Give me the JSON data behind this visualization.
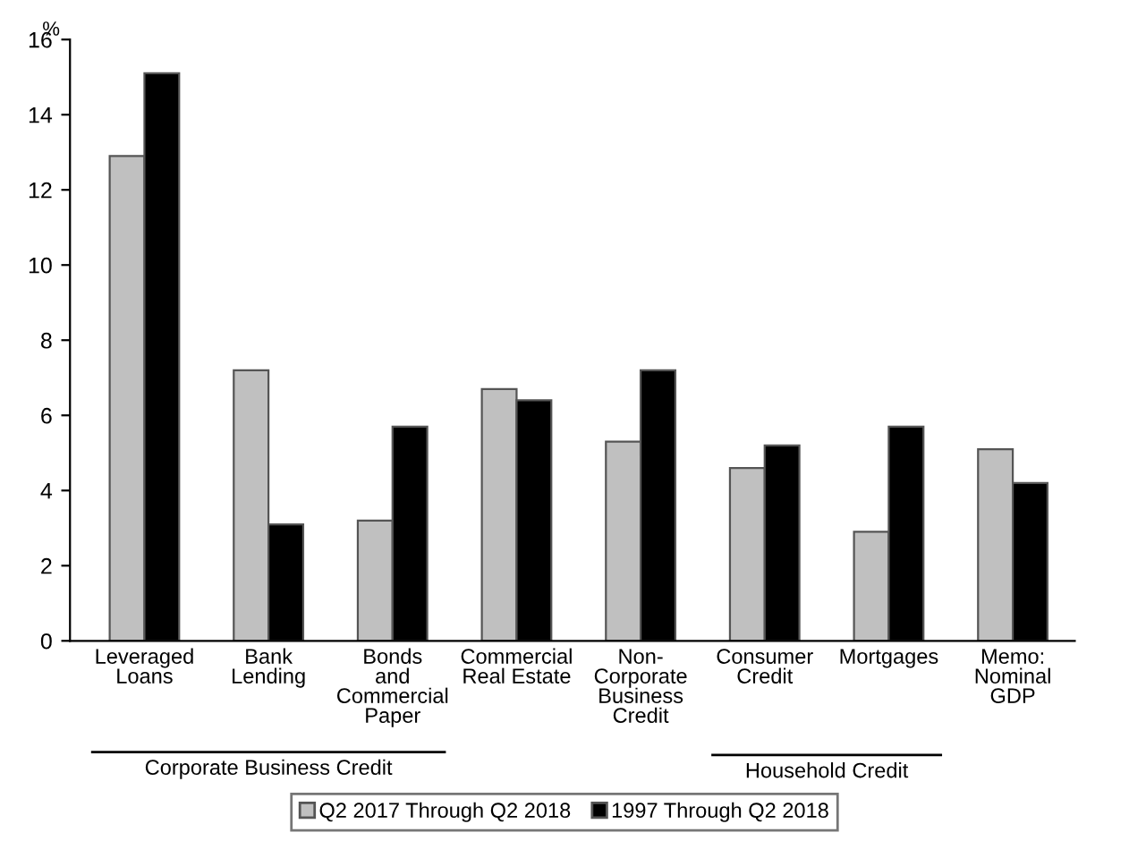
{
  "chart_data": {
    "type": "bar",
    "ylabel": "%",
    "categories": [
      "Leveraged\nLoans",
      "Bank\nLending",
      "Bonds\nand\nCommercial\nPaper",
      "Commercial\nReal Estate",
      "Non-\nCorporate\nBusiness\nCredit",
      "Consumer\nCredit",
      "Mortgages",
      "Memo:\nNominal\nGDP"
    ],
    "series": [
      {
        "name": "Q2 2017 Through Q2 2018",
        "color": "#c0c0c0",
        "values": [
          12.9,
          7.2,
          3.2,
          6.7,
          5.3,
          4.6,
          2.9,
          5.1
        ]
      },
      {
        "name": "1997 Through Q2 2018",
        "color": "#000000",
        "values": [
          15.1,
          3.1,
          5.7,
          6.4,
          7.2,
          5.2,
          5.7,
          4.2
        ]
      }
    ],
    "ylim": [
      0,
      16
    ],
    "yticks": [
      0,
      2,
      4,
      6,
      8,
      10,
      12,
      14,
      16
    ],
    "grid": false,
    "legend": "bottom",
    "annotations": [
      "Corporate Business Credit",
      "Household Credit"
    ]
  }
}
